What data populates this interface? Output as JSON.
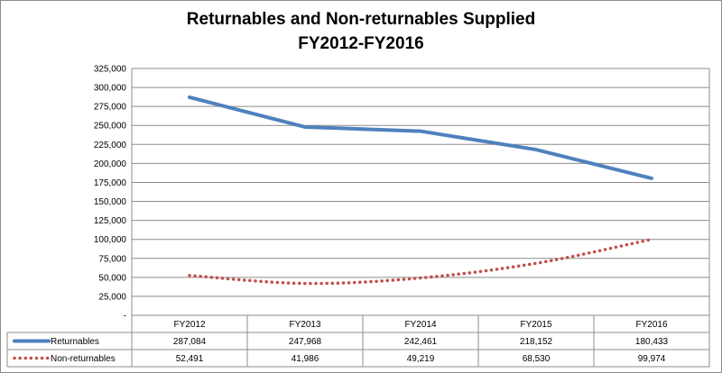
{
  "chart_data": {
    "type": "line",
    "title": "Returnables and Non-returnables Supplied",
    "subtitle": "FY2012-FY2016",
    "categories": [
      "FY2012",
      "FY2013",
      "FY2014",
      "FY2015",
      "FY2016"
    ],
    "series": [
      {
        "name": "Returnables",
        "values": [
          287084,
          247968,
          242461,
          218152,
          180433
        ],
        "labels": [
          "287,084",
          "247,968",
          "242,461",
          "218,152",
          "180,433"
        ],
        "color": "#4f81bd",
        "style": "solid"
      },
      {
        "name": "Non-returnables",
        "values": [
          52491,
          41986,
          49219,
          68530,
          99974
        ],
        "labels": [
          "52,491",
          "41,986",
          "49,219",
          "68,530",
          "99,974"
        ],
        "color": "#c0504d",
        "style": "dotted"
      }
    ],
    "ylim": [
      0,
      325000
    ],
    "y_ticks": [
      "-",
      "25,000",
      "50,000",
      "75,000",
      "100,000",
      "125,000",
      "150,000",
      "175,000",
      "200,000",
      "225,000",
      "250,000",
      "275,000",
      "300,000",
      "325,000"
    ],
    "grid": true,
    "legend": "data table below plot"
  }
}
